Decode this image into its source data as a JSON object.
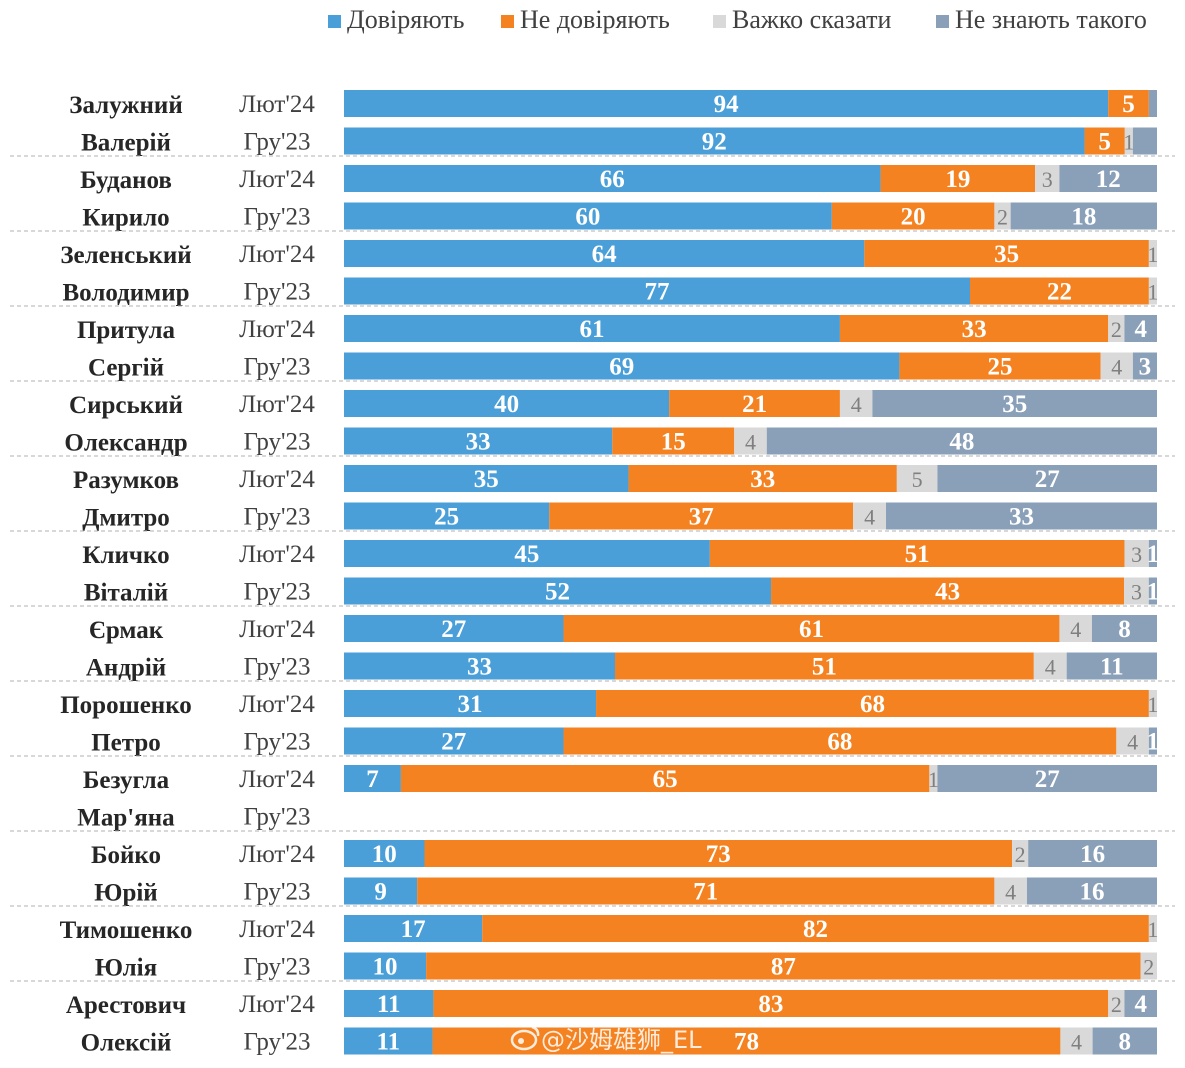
{
  "chart_data": {
    "type": "bar",
    "orientation": "horizontal-stacked-100",
    "legend_position": "top-right",
    "colors": {
      "trust": "#4a9fd8",
      "distrust": "#f58220",
      "hard_to_say": "#d9d9d9",
      "unknown": "#8a9fb8",
      "separator": "#b0b0b0"
    },
    "series": [
      {
        "key": "trust",
        "name": "Довіряють"
      },
      {
        "key": "distrust",
        "name": "Не довіряють"
      },
      {
        "key": "hard_to_say",
        "name": "Важко сказати"
      },
      {
        "key": "unknown",
        "name": "Не знають такого"
      }
    ],
    "groups": [
      {
        "name": [
          "Залужний",
          "Валерій"
        ],
        "rows": [
          {
            "period": "Лют'24",
            "values": [
              94,
              5,
              0,
              1
            ],
            "labels": [
              "94",
              "5",
              "",
              ""
            ]
          },
          {
            "period": "Гру'23",
            "values": [
              92,
              5,
              1,
              3
            ],
            "labels": [
              "92",
              "5",
              "1",
              ""
            ]
          }
        ]
      },
      {
        "name": [
          "Буданов",
          "Кирило"
        ],
        "rows": [
          {
            "period": "Лют'24",
            "values": [
              66,
              19,
              3,
              12
            ],
            "labels": [
              "66",
              "19",
              "3",
              "12"
            ]
          },
          {
            "period": "Гру'23",
            "values": [
              60,
              20,
              2,
              18
            ],
            "labels": [
              "60",
              "20",
              "2",
              "18"
            ]
          }
        ]
      },
      {
        "name": [
          "Зеленський",
          "Володимир"
        ],
        "rows": [
          {
            "period": "Лют'24",
            "values": [
              64,
              35,
              1,
              0
            ],
            "labels": [
              "64",
              "35",
              "1",
              ""
            ]
          },
          {
            "period": "Гру'23",
            "values": [
              77,
              22,
              1,
              0
            ],
            "labels": [
              "77",
              "22",
              "1",
              ""
            ]
          }
        ]
      },
      {
        "name": [
          "Притула",
          "Сергій"
        ],
        "rows": [
          {
            "period": "Лют'24",
            "values": [
              61,
              33,
              2,
              4
            ],
            "labels": [
              "61",
              "33",
              "2",
              "4"
            ]
          },
          {
            "period": "Гру'23",
            "values": [
              69,
              25,
              4,
              3
            ],
            "labels": [
              "69",
              "25",
              "4",
              "3"
            ]
          }
        ]
      },
      {
        "name": [
          "Сирський",
          "Олександр"
        ],
        "rows": [
          {
            "period": "Лют'24",
            "values": [
              40,
              21,
              4,
              35
            ],
            "labels": [
              "40",
              "21",
              "4",
              "35"
            ]
          },
          {
            "period": "Гру'23",
            "values": [
              33,
              15,
              4,
              48
            ],
            "labels": [
              "33",
              "15",
              "4",
              "48"
            ]
          }
        ]
      },
      {
        "name": [
          "Разумков",
          "Дмитро"
        ],
        "rows": [
          {
            "period": "Лют'24",
            "values": [
              35,
              33,
              5,
              27
            ],
            "labels": [
              "35",
              "33",
              "5",
              "27"
            ]
          },
          {
            "period": "Гру'23",
            "values": [
              25,
              37,
              4,
              33
            ],
            "labels": [
              "25",
              "37",
              "4",
              "33"
            ]
          }
        ]
      },
      {
        "name": [
          "Кличко",
          "Віталій"
        ],
        "rows": [
          {
            "period": "Лют'24",
            "values": [
              45,
              51,
              3,
              1
            ],
            "labels": [
              "45",
              "51",
              "3",
              "1"
            ]
          },
          {
            "period": "Гру'23",
            "values": [
              52,
              43,
              3,
              1
            ],
            "labels": [
              "52",
              "43",
              "3",
              "1"
            ]
          }
        ]
      },
      {
        "name": [
          "Єрмак",
          "Андрій"
        ],
        "rows": [
          {
            "period": "Лют'24",
            "values": [
              27,
              61,
              4,
              8
            ],
            "labels": [
              "27",
              "61",
              "4",
              "8"
            ]
          },
          {
            "period": "Гру'23",
            "values": [
              33,
              51,
              4,
              11
            ],
            "labels": [
              "33",
              "51",
              "4",
              "11"
            ]
          }
        ]
      },
      {
        "name": [
          "Порошенко",
          "Петро"
        ],
        "rows": [
          {
            "period": "Лют'24",
            "values": [
              31,
              68,
              1,
              0
            ],
            "labels": [
              "31",
              "68",
              "1",
              ""
            ]
          },
          {
            "period": "Гру'23",
            "values": [
              27,
              68,
              4,
              1
            ],
            "labels": [
              "27",
              "68",
              "4",
              "1"
            ]
          }
        ]
      },
      {
        "name": [
          "Безугла",
          "Мар'яна"
        ],
        "rows": [
          {
            "period": "Лют'24",
            "values": [
              7,
              65,
              1,
              27
            ],
            "labels": [
              "7",
              "65",
              "1",
              "27"
            ]
          },
          {
            "period": "Гру'23",
            "values": null,
            "labels": null
          }
        ]
      },
      {
        "name": [
          "Бойко",
          "Юрій"
        ],
        "rows": [
          {
            "period": "Лют'24",
            "values": [
              10,
              73,
              2,
              16
            ],
            "labels": [
              "10",
              "73",
              "2",
              "16"
            ]
          },
          {
            "period": "Гру'23",
            "values": [
              9,
              71,
              4,
              16
            ],
            "labels": [
              "9",
              "71",
              "4",
              "16"
            ]
          }
        ]
      },
      {
        "name": [
          "Тимошенко",
          "Юлія"
        ],
        "rows": [
          {
            "period": "Лют'24",
            "values": [
              17,
              82,
              1,
              0
            ],
            "labels": [
              "17",
              "82",
              "1",
              ""
            ]
          },
          {
            "period": "Гру'23",
            "values": [
              10,
              87,
              2,
              0
            ],
            "labels": [
              "10",
              "87",
              "2",
              ""
            ]
          }
        ]
      },
      {
        "name": [
          "Арестович",
          "Олексій"
        ],
        "rows": [
          {
            "period": "Лют'24",
            "values": [
              11,
              83,
              2,
              4
            ],
            "labels": [
              "11",
              "83",
              "2",
              "4"
            ]
          },
          {
            "period": "Гру'23",
            "values": [
              11,
              78,
              4,
              8
            ],
            "labels": [
              "11",
              "78",
              "4",
              "8"
            ]
          }
        ]
      }
    ]
  },
  "watermark": "@沙姆雄狮_EL"
}
